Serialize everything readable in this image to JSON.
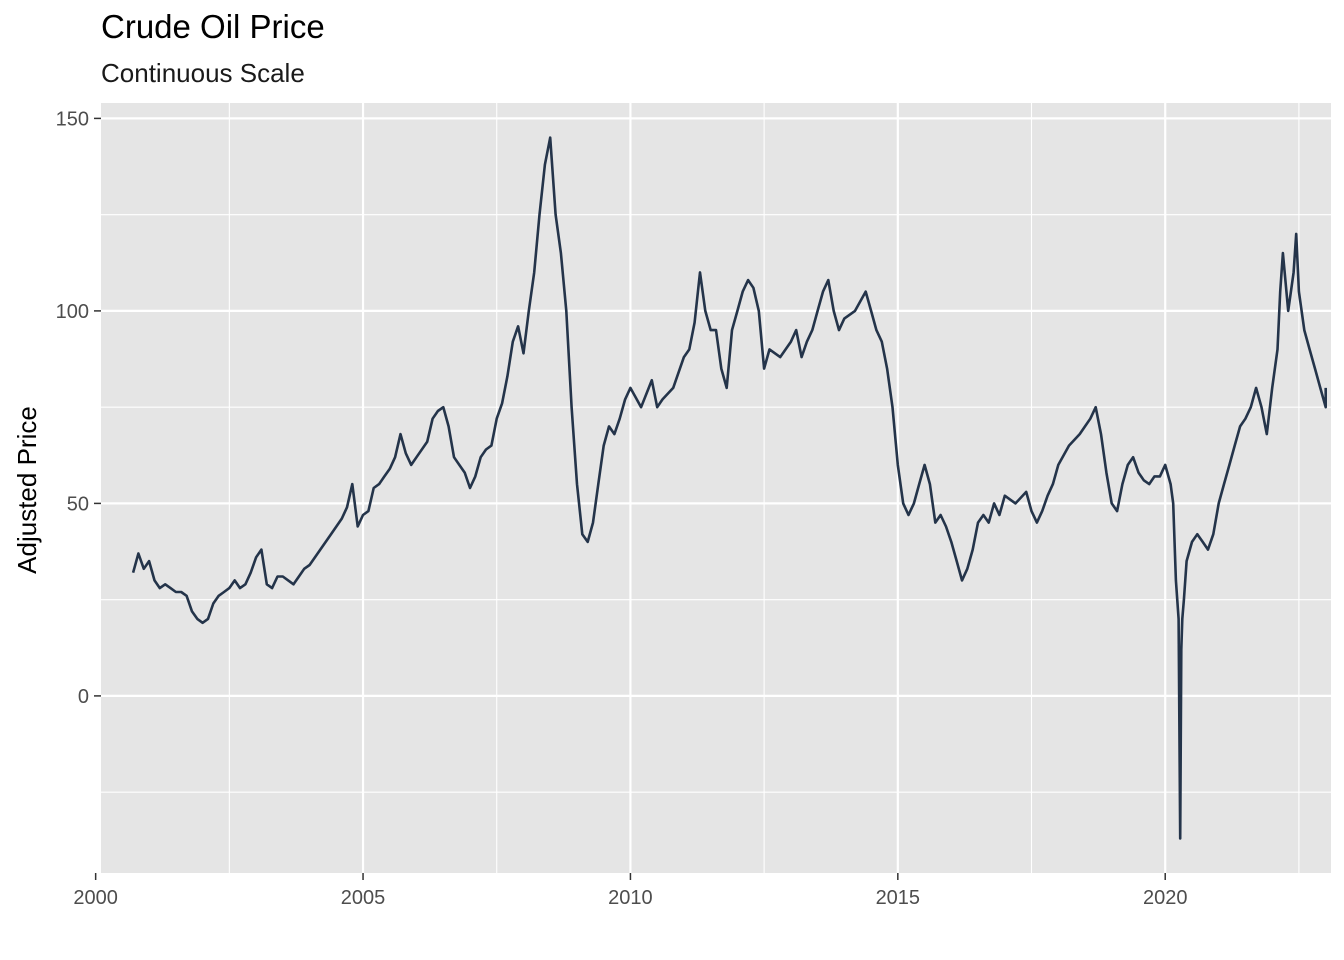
{
  "chart_data": {
    "type": "line",
    "title": "Crude Oil Price",
    "subtitle": "Continuous Scale",
    "xlabel": "",
    "ylabel": "Adjusted Price",
    "xlim": [
      2000.1,
      2023.1
    ],
    "ylim": [
      -46,
      154
    ],
    "x_ticks": [
      2000,
      2005,
      2010,
      2015,
      2020
    ],
    "x_tick_labels": [
      "2000",
      "2005",
      "2010",
      "2015",
      "2020"
    ],
    "y_ticks": [
      0,
      50,
      100,
      150
    ],
    "y_tick_labels": [
      "0",
      "50",
      "100",
      "150"
    ],
    "grid": true,
    "legend": "none",
    "colors": {
      "panel": "#e5e5e5",
      "grid": "#ffffff",
      "line": "#24344a"
    },
    "series": [
      {
        "x": [
          2000.7,
          2000.8,
          2000.9,
          2001.0,
          2001.1,
          2001.2,
          2001.3,
          2001.4,
          2001.5,
          2001.6,
          2001.7,
          2001.8,
          2001.9,
          2002.0,
          2002.1,
          2002.2,
          2002.3,
          2002.4,
          2002.5,
          2002.6,
          2002.7,
          2002.8,
          2002.9,
          2003.0,
          2003.1,
          2003.2,
          2003.3,
          2003.4,
          2003.5,
          2003.6,
          2003.7,
          2003.8,
          2003.9,
          2004.0,
          2004.2,
          2004.4,
          2004.6,
          2004.7,
          2004.8,
          2004.9,
          2005.0,
          2005.1,
          2005.2,
          2005.3,
          2005.4,
          2005.5,
          2005.6,
          2005.7,
          2005.8,
          2005.9,
          2006.0,
          2006.2,
          2006.3,
          2006.4,
          2006.5,
          2006.6,
          2006.7,
          2006.8,
          2006.9,
          2007.0,
          2007.1,
          2007.2,
          2007.3,
          2007.4,
          2007.5,
          2007.6,
          2007.7,
          2007.8,
          2007.9,
          2008.0,
          2008.1,
          2008.2,
          2008.3,
          2008.4,
          2008.5,
          2008.6,
          2008.7,
          2008.8,
          2008.9,
          2009.0,
          2009.1,
          2009.2,
          2009.3,
          2009.4,
          2009.5,
          2009.6,
          2009.7,
          2009.8,
          2009.9,
          2010.0,
          2010.2,
          2010.4,
          2010.5,
          2010.6,
          2010.8,
          2011.0,
          2011.1,
          2011.2,
          2011.3,
          2011.4,
          2011.5,
          2011.6,
          2011.7,
          2011.8,
          2011.9,
          2012.0,
          2012.1,
          2012.2,
          2012.3,
          2012.4,
          2012.5,
          2012.6,
          2012.8,
          2013.0,
          2013.1,
          2013.2,
          2013.3,
          2013.4,
          2013.5,
          2013.6,
          2013.7,
          2013.8,
          2013.9,
          2014.0,
          2014.2,
          2014.4,
          2014.5,
          2014.6,
          2014.7,
          2014.8,
          2014.9,
          2015.0,
          2015.1,
          2015.2,
          2015.3,
          2015.4,
          2015.5,
          2015.6,
          2015.7,
          2015.8,
          2015.9,
          2016.0,
          2016.1,
          2016.2,
          2016.3,
          2016.4,
          2016.5,
          2016.6,
          2016.7,
          2016.8,
          2016.9,
          2017.0,
          2017.2,
          2017.4,
          2017.5,
          2017.6,
          2017.7,
          2017.8,
          2017.9,
          2018.0,
          2018.2,
          2018.4,
          2018.5,
          2018.6,
          2018.7,
          2018.8,
          2018.9,
          2019.0,
          2019.1,
          2019.2,
          2019.3,
          2019.4,
          2019.5,
          2019.6,
          2019.7,
          2019.8,
          2019.9,
          2020.0,
          2020.1,
          2020.15,
          2020.2,
          2020.25,
          2020.28,
          2020.3,
          2020.32,
          2020.35,
          2020.4,
          2020.5,
          2020.6,
          2020.7,
          2020.8,
          2020.9,
          2021.0,
          2021.1,
          2021.2,
          2021.3,
          2021.4,
          2021.5,
          2021.6,
          2021.7,
          2021.8,
          2021.9,
          2022.0,
          2022.1,
          2022.15,
          2022.2,
          2022.3,
          2022.4,
          2022.45,
          2022.5,
          2022.6,
          2022.7,
          2022.8,
          2022.9,
          2023.0,
          2023.0
        ],
        "y": [
          32,
          37,
          33,
          35,
          30,
          28,
          29,
          28,
          27,
          27,
          26,
          22,
          20,
          19,
          20,
          24,
          26,
          27,
          28,
          30,
          28,
          29,
          32,
          36,
          38,
          29,
          28,
          31,
          31,
          30,
          29,
          31,
          33,
          34,
          38,
          42,
          46,
          49,
          55,
          44,
          47,
          48,
          54,
          55,
          57,
          59,
          62,
          68,
          63,
          60,
          62,
          66,
          72,
          74,
          75,
          70,
          62,
          60,
          58,
          54,
          57,
          62,
          64,
          65,
          72,
          76,
          83,
          92,
          96,
          89,
          100,
          110,
          125,
          138,
          145,
          125,
          115,
          100,
          75,
          55,
          42,
          40,
          45,
          55,
          65,
          70,
          68,
          72,
          77,
          80,
          75,
          82,
          75,
          77,
          80,
          88,
          90,
          97,
          110,
          100,
          95,
          95,
          85,
          80,
          95,
          100,
          105,
          108,
          106,
          100,
          85,
          90,
          88,
          92,
          95,
          88,
          92,
          95,
          100,
          105,
          108,
          100,
          95,
          98,
          100,
          105,
          100,
          95,
          92,
          85,
          75,
          60,
          50,
          47,
          50,
          55,
          60,
          55,
          45,
          47,
          44,
          40,
          35,
          30,
          33,
          38,
          45,
          47,
          45,
          50,
          47,
          52,
          50,
          53,
          48,
          45,
          48,
          52,
          55,
          60,
          65,
          68,
          70,
          72,
          75,
          68,
          58,
          50,
          48,
          55,
          60,
          62,
          58,
          56,
          55,
          57,
          57,
          60,
          55,
          50,
          30,
          20,
          -37,
          12,
          20,
          25,
          35,
          40,
          42,
          40,
          38,
          42,
          50,
          55,
          60,
          65,
          70,
          72,
          75,
          80,
          75,
          68,
          80,
          90,
          105,
          115,
          100,
          110,
          120,
          105,
          95,
          90,
          85,
          80,
          75,
          80
        ]
      }
    ]
  }
}
